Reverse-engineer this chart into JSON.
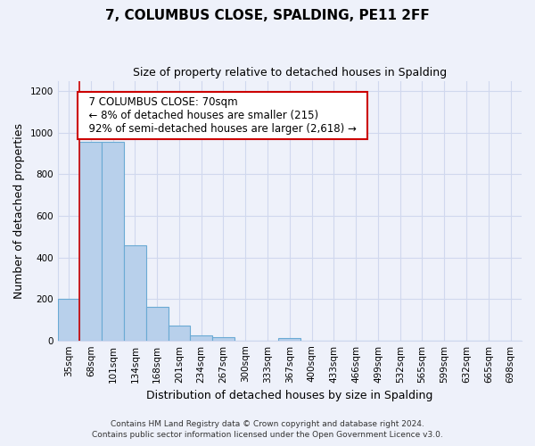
{
  "title": "7, COLUMBUS CLOSE, SPALDING, PE11 2FF",
  "subtitle": "Size of property relative to detached houses in Spalding",
  "xlabel": "Distribution of detached houses by size in Spalding",
  "ylabel": "Number of detached properties",
  "bin_labels": [
    "35sqm",
    "68sqm",
    "101sqm",
    "134sqm",
    "168sqm",
    "201sqm",
    "234sqm",
    "267sqm",
    "300sqm",
    "333sqm",
    "367sqm",
    "400sqm",
    "433sqm",
    "466sqm",
    "499sqm",
    "532sqm",
    "565sqm",
    "599sqm",
    "632sqm",
    "665sqm",
    "698sqm"
  ],
  "bar_values": [
    200,
    955,
    955,
    460,
    160,
    70,
    25,
    17,
    0,
    0,
    12,
    0,
    0,
    0,
    0,
    0,
    0,
    0,
    0,
    0,
    0
  ],
  "bar_color": "#b8d0eb",
  "bar_edge_color": "#6aaad4",
  "bar_width": 1.0,
  "red_line_x": 1.0,
  "ylim": [
    0,
    1250
  ],
  "yticks": [
    0,
    200,
    400,
    600,
    800,
    1000,
    1200
  ],
  "annotation_title": "7 COLUMBUS CLOSE: 70sqm",
  "annotation_line1": "← 8% of detached houses are smaller (215)",
  "annotation_line2": "92% of semi-detached houses are larger (2,618) →",
  "annotation_box_color": "#ffffff",
  "annotation_box_edge_color": "#cc0000",
  "footer_line1": "Contains HM Land Registry data © Crown copyright and database right 2024.",
  "footer_line2": "Contains public sector information licensed under the Open Government Licence v3.0.",
  "background_color": "#eef1fa",
  "grid_color": "#d0d8ee",
  "fig_width": 6.0,
  "fig_height": 5.0,
  "title_fontsize": 11,
  "subtitle_fontsize": 9,
  "tick_fontsize": 7.5,
  "ylabel_fontsize": 9,
  "xlabel_fontsize": 9,
  "annotation_fontsize": 8.5,
  "footer_fontsize": 6.5
}
